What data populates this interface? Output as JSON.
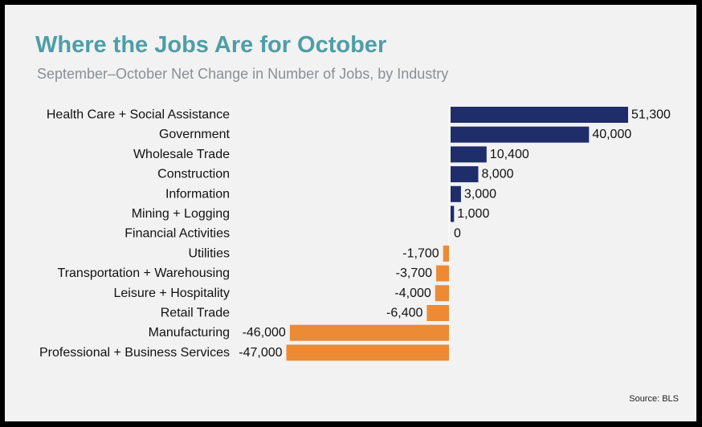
{
  "title": "Where the Jobs Are for October",
  "subtitle": "September–October Net Change in Number of Jobs, by Industry",
  "source": "Source: BLS",
  "colors": {
    "positive": "#1f2d6b",
    "negative": "#ec8a35",
    "title": "#4e9ea7"
  },
  "chart_data": {
    "type": "bar",
    "orientation": "horizontal",
    "categories": [
      "Health Care + Social Assistance",
      "Government",
      "Wholesale Trade",
      "Construction",
      "Information",
      "Mining + Logging",
      "Financial Activities",
      "Utilities",
      "Transportation + Warehousing",
      "Leisure + Hospitality",
      "Retail Trade",
      "Manufacturing",
      "Professional + Business Services"
    ],
    "values": [
      51300,
      40000,
      10400,
      8000,
      3000,
      1000,
      0,
      -1700,
      -3700,
      -4000,
      -6400,
      -46000,
      -47000
    ],
    "value_labels": [
      "51,300",
      "40,000",
      "10,400",
      "8,000",
      "3,000",
      "1,000",
      "0",
      "-1,700",
      "-3,700",
      "-4,000",
      "-6,400",
      "-46,000",
      "-47,000"
    ],
    "xlim": [
      -47000,
      51300
    ],
    "grid": false,
    "legend": "none"
  }
}
